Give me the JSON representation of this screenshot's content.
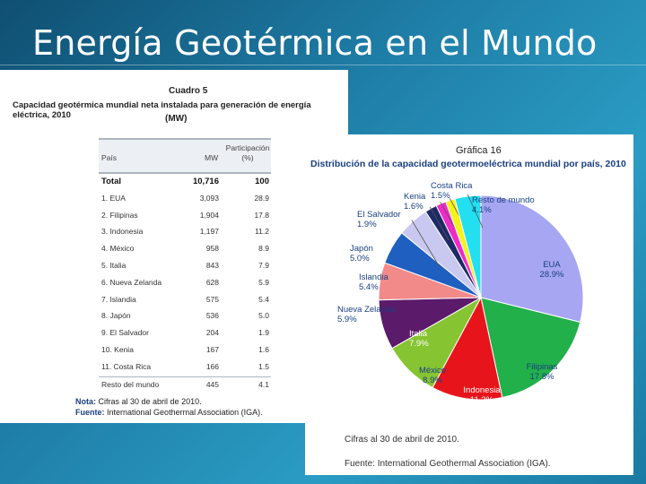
{
  "slide": {
    "title": "Energía Geotérmica en el Mundo"
  },
  "table": {
    "title": "Cuadro 5",
    "subtitle": "Capacidad geotérmica mundial neta instalada para generación de energía eléctrica, 2010",
    "unit": "(MW)",
    "headers": {
      "pais": "País",
      "mw": "MW",
      "part": "Participación (%)"
    },
    "total": {
      "name": "Total",
      "mw": "10,716",
      "pct": "100"
    },
    "rows": [
      {
        "name": "1. EUA",
        "mw": "3,093",
        "pct": "28.9"
      },
      {
        "name": "2. Filipinas",
        "mw": "1,904",
        "pct": "17.8"
      },
      {
        "name": "3. Indonesia",
        "mw": "1,197",
        "pct": "11.2"
      },
      {
        "name": "4. México",
        "mw": "958",
        "pct": "8.9"
      },
      {
        "name": "5. Italia",
        "mw": "843",
        "pct": "7.9"
      },
      {
        "name": "6. Nueva Zelanda",
        "mw": "628",
        "pct": "5.9"
      },
      {
        "name": "7. Islandia",
        "mw": "575",
        "pct": "5.4"
      },
      {
        "name": "8. Japón",
        "mw": "536",
        "pct": "5.0"
      },
      {
        "name": "9. El Salvador",
        "mw": "204",
        "pct": "1.9"
      },
      {
        "name": "10. Kenia",
        "mw": "167",
        "pct": "1.6"
      },
      {
        "name": "11. Costa Rica",
        "mw": "166",
        "pct": "1.5"
      },
      {
        "name": "Resto del mundo",
        "mw": "445",
        "pct": "4.1"
      }
    ],
    "note_label": "Nota:",
    "note_text": "Cifras al 30 de abril de 2010.",
    "source_label": "Fuente:",
    "source_text": "International Geothermal Association (IGA)."
  },
  "chart_data": {
    "type": "pie",
    "title": "Gráfica 16",
    "subtitle": "Distribución de la capacidad geotermoeléctrica mundial por país, 2010",
    "slices": [
      {
        "label": "EUA",
        "value": 28.9,
        "display": "28.9%",
        "color": "#a6a6f2"
      },
      {
        "label": "Filipinas",
        "value": 17.8,
        "display": "17.8%",
        "color": "#22b04b"
      },
      {
        "label": "Indonesia",
        "value": 11.2,
        "display": "11.2%",
        "color": "#e8141b"
      },
      {
        "label": "México",
        "value": 8.9,
        "display": "8.9%",
        "color": "#86c431"
      },
      {
        "label": "Italia",
        "value": 7.9,
        "display": "7.9%",
        "color": "#5c1a6b"
      },
      {
        "label": "Nueva Zelanda",
        "value": 5.9,
        "display": "5.9%",
        "color": "#f28a8a"
      },
      {
        "label": "Islandia",
        "value": 5.4,
        "display": "5.4%",
        "color": "#1f5fbf"
      },
      {
        "label": "Japón",
        "value": 5.0,
        "display": "5.0%",
        "color": "#c8c8f0"
      },
      {
        "label": "El Salvador",
        "value": 1.9,
        "display": "1.9%",
        "color": "#1e2a66"
      },
      {
        "label": "Kenia",
        "value": 1.6,
        "display": "1.6%",
        "color": "#f02ac8"
      },
      {
        "label": "Costa Rica",
        "value": 1.5,
        "display": "1.5%",
        "color": "#f5f21b"
      },
      {
        "label": "Resto de mundo",
        "value": 4.1,
        "display": "4.1%",
        "color": "#22e0f0"
      }
    ],
    "note": "Cifras al 30 de abril de 2010.",
    "source": "Fuente: International Geothermal Association (IGA)."
  }
}
